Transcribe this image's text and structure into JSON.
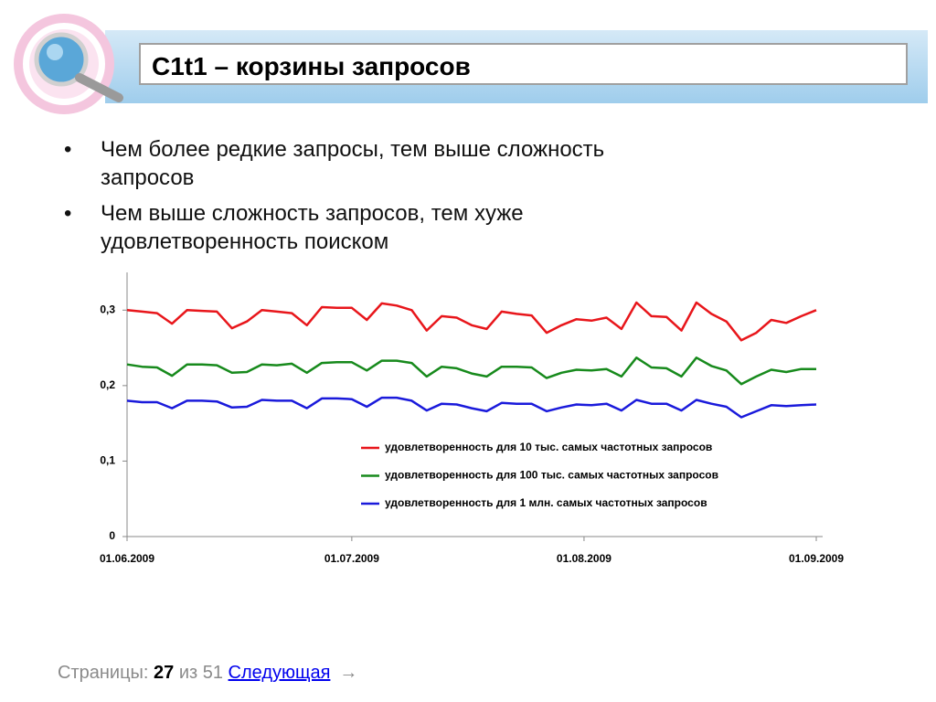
{
  "header": {
    "title": "С1t1 – корзины запросов"
  },
  "bullets": [
    "Чем более редкие запросы, тем выше сложность запросов",
    "Чем выше сложность запросов, тем хуже удовлетворенность поиском"
  ],
  "chart_data": {
    "type": "line",
    "x": [
      "01.06.2009",
      "03.06.2009",
      "05.06.2009",
      "07.06.2009",
      "09.06.2009",
      "11.06.2009",
      "13.06.2009",
      "15.06.2009",
      "17.06.2009",
      "19.06.2009",
      "21.06.2009",
      "23.06.2009",
      "25.06.2009",
      "27.06.2009",
      "29.06.2009",
      "01.07.2009",
      "03.07.2009",
      "05.07.2009",
      "07.07.2009",
      "09.07.2009",
      "11.07.2009",
      "13.07.2009",
      "15.07.2009",
      "17.07.2009",
      "19.07.2009",
      "21.07.2009",
      "23.07.2009",
      "25.07.2009",
      "27.07.2009",
      "29.07.2009",
      "31.07.2009",
      "02.08.2009",
      "04.08.2009",
      "06.08.2009",
      "08.08.2009",
      "10.08.2009",
      "12.08.2009",
      "14.08.2009",
      "16.08.2009",
      "18.08.2009",
      "20.08.2009",
      "22.08.2009",
      "24.08.2009",
      "26.08.2009",
      "28.08.2009",
      "30.08.2009",
      "01.09.2009"
    ],
    "series": [
      {
        "name": "удовлетворенность для 10 тыс. самых частотных запросов",
        "color": "#e8161b",
        "values": [
          0.3,
          0.298,
          0.296,
          0.282,
          0.3,
          0.299,
          0.298,
          0.276,
          0.285,
          0.3,
          0.298,
          0.296,
          0.28,
          0.304,
          0.303,
          0.303,
          0.287,
          0.309,
          0.306,
          0.3,
          0.273,
          0.292,
          0.29,
          0.28,
          0.275,
          0.298,
          0.295,
          0.293,
          0.27,
          0.28,
          0.288,
          0.286,
          0.29,
          0.275,
          0.31,
          0.292,
          0.291,
          0.273,
          0.31,
          0.295,
          0.285,
          0.26,
          0.27,
          0.287,
          0.283,
          0.292,
          0.3
        ]
      },
      {
        "name": "удовлетворенность для 100 тыс. самых частотных запросов",
        "color": "#178a1c",
        "values": [
          0.228,
          0.225,
          0.224,
          0.213,
          0.228,
          0.228,
          0.227,
          0.217,
          0.218,
          0.228,
          0.227,
          0.229,
          0.217,
          0.23,
          0.231,
          0.231,
          0.22,
          0.233,
          0.233,
          0.23,
          0.212,
          0.225,
          0.223,
          0.216,
          0.212,
          0.225,
          0.225,
          0.224,
          0.21,
          0.217,
          0.221,
          0.22,
          0.222,
          0.212,
          0.237,
          0.224,
          0.223,
          0.212,
          0.237,
          0.226,
          0.22,
          0.202,
          0.212,
          0.221,
          0.218,
          0.222,
          0.222
        ]
      },
      {
        "name": "удовлетворенность для 1 млн. самых частотных запросов",
        "color": "#1a1adb",
        "values": [
          0.18,
          0.178,
          0.178,
          0.17,
          0.18,
          0.18,
          0.179,
          0.171,
          0.172,
          0.181,
          0.18,
          0.18,
          0.17,
          0.183,
          0.183,
          0.182,
          0.172,
          0.184,
          0.184,
          0.18,
          0.167,
          0.176,
          0.175,
          0.17,
          0.166,
          0.177,
          0.176,
          0.176,
          0.166,
          0.171,
          0.175,
          0.174,
          0.176,
          0.167,
          0.181,
          0.176,
          0.176,
          0.167,
          0.181,
          0.176,
          0.172,
          0.158,
          0.166,
          0.174,
          0.173,
          0.174,
          0.175
        ]
      }
    ],
    "xlim": [
      "01.06.2009",
      "01.09.2009"
    ],
    "xticks": [
      "01.06.2009",
      "01.07.2009",
      "01.08.2009",
      "01.09.2009"
    ],
    "ylim": [
      0,
      0.35
    ],
    "yticks": [
      0,
      {
        "value": 0.1,
        "label": "0,1"
      },
      {
        "value": 0.2,
        "label": "0,2"
      },
      {
        "value": 0.3,
        "label": "0,3"
      }
    ],
    "grid": false,
    "legend": "lower right"
  },
  "pager": {
    "label": "Страницы:",
    "current": 27,
    "of": "из 51",
    "next": "Следующая",
    "arrow": "→"
  }
}
